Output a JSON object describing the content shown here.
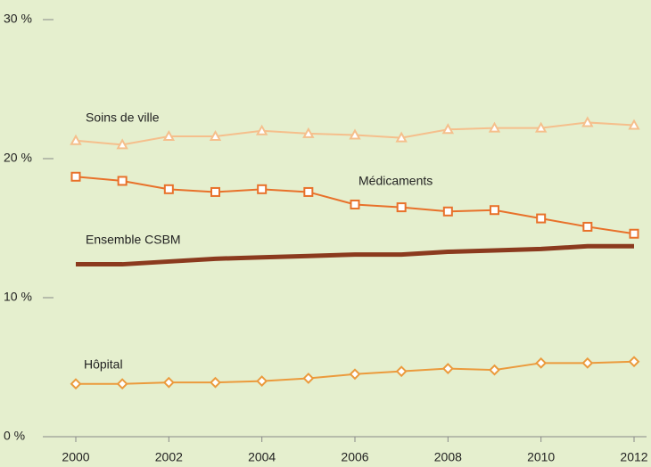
{
  "chart_data": {
    "type": "line",
    "x": [
      2000,
      2001,
      2002,
      2003,
      2004,
      2005,
      2006,
      2007,
      2008,
      2009,
      2010,
      2011,
      2012
    ],
    "series": [
      {
        "name": "Soins de ville",
        "color": "#f5bf8c",
        "marker": "triangle",
        "values": [
          21.3,
          21.0,
          21.6,
          21.6,
          22.0,
          21.8,
          21.7,
          21.5,
          22.1,
          22.2,
          22.2,
          22.6,
          22.4
        ]
      },
      {
        "name": "Médicaments",
        "color": "#e8712a",
        "marker": "square",
        "values": [
          18.7,
          18.4,
          17.8,
          17.6,
          17.8,
          17.6,
          16.7,
          16.5,
          16.2,
          16.3,
          15.7,
          15.1,
          14.6
        ]
      },
      {
        "name": "Ensemble CSBM",
        "color": "#8b3a1e",
        "marker": null,
        "values": [
          12.4,
          12.4,
          12.6,
          12.8,
          12.9,
          13.0,
          13.1,
          13.1,
          13.3,
          13.4,
          13.5,
          13.7,
          13.7
        ]
      },
      {
        "name": "Hôpital",
        "color": "#eb9a3c",
        "marker": "diamond",
        "values": [
          3.8,
          3.8,
          3.9,
          3.9,
          4.0,
          4.2,
          4.5,
          4.7,
          4.9,
          4.8,
          5.3,
          5.3,
          5.4
        ]
      }
    ],
    "xlim": [
      2000,
      2012
    ],
    "xticks": [
      2000,
      2002,
      2004,
      2006,
      2008,
      2010,
      2012
    ],
    "ylim": [
      0,
      30
    ],
    "yticks": [
      {
        "value": 0,
        "label": "0 %"
      },
      {
        "value": 10,
        "label": "10 %"
      },
      {
        "value": 20,
        "label": "20 %"
      },
      {
        "value": 30,
        "label": "30 %"
      }
    ],
    "grid": false
  }
}
